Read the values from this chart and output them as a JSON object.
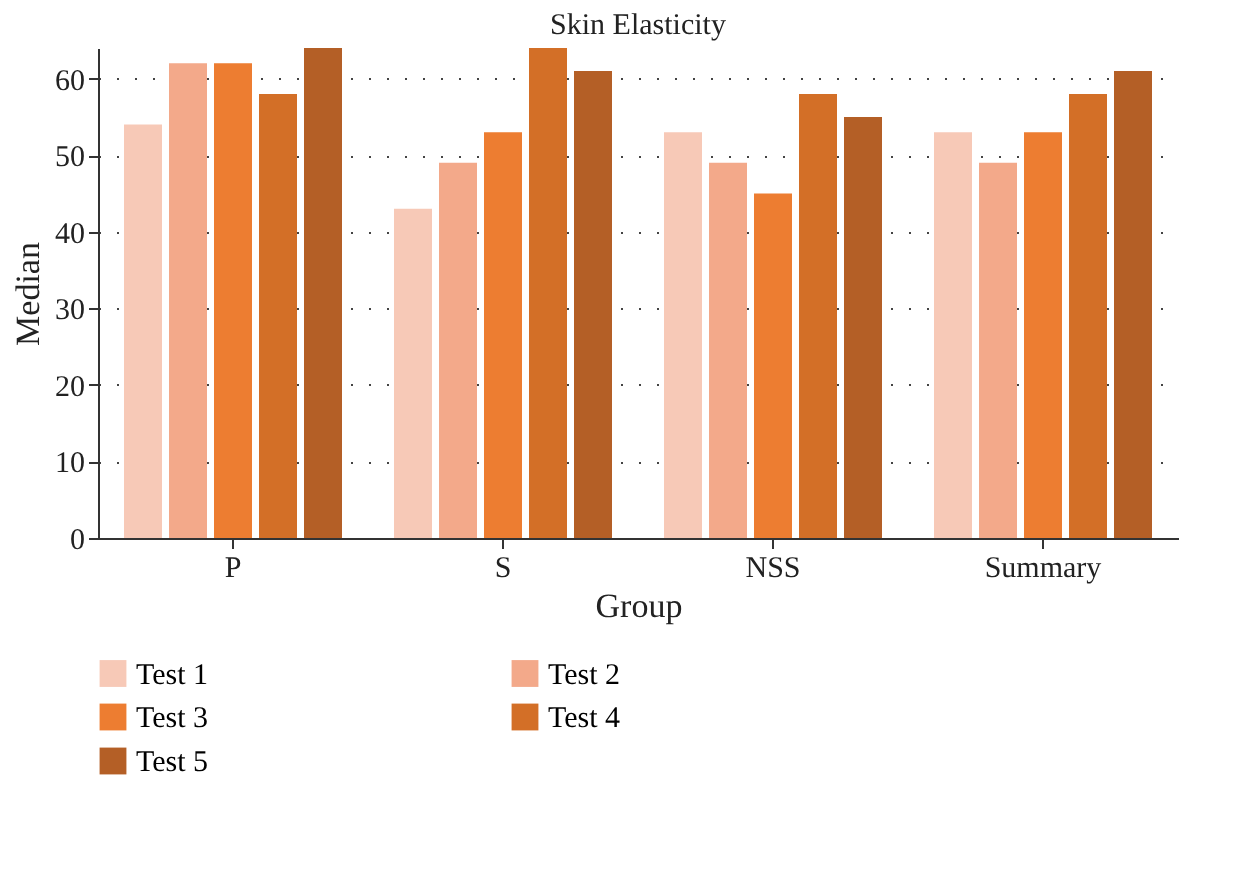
{
  "chart_data": {
    "type": "bar",
    "title": "Skin Elasticity",
    "xlabel": "Group",
    "ylabel": "Median",
    "categories": [
      "P",
      "S",
      "NSS",
      "Summary"
    ],
    "series": [
      {
        "name": "Test 1",
        "color": "#f7c9b7",
        "values": [
          54,
          43,
          53,
          53
        ]
      },
      {
        "name": "Test 2",
        "color": "#f3a98a",
        "values": [
          62,
          49,
          49,
          49
        ]
      },
      {
        "name": "Test 3",
        "color": "#ed7d31",
        "values": [
          62,
          53,
          45,
          53
        ]
      },
      {
        "name": "Test 4",
        "color": "#d36f27",
        "values": [
          58,
          64,
          58,
          58
        ]
      },
      {
        "name": "Test 5",
        "color": "#b45f26",
        "values": [
          64,
          61,
          55,
          61
        ]
      }
    ],
    "ylim": [
      0,
      64
    ],
    "yticks": [
      0,
      10,
      20,
      30,
      40,
      50,
      60
    ],
    "grid": "y",
    "legend": "bottom"
  }
}
